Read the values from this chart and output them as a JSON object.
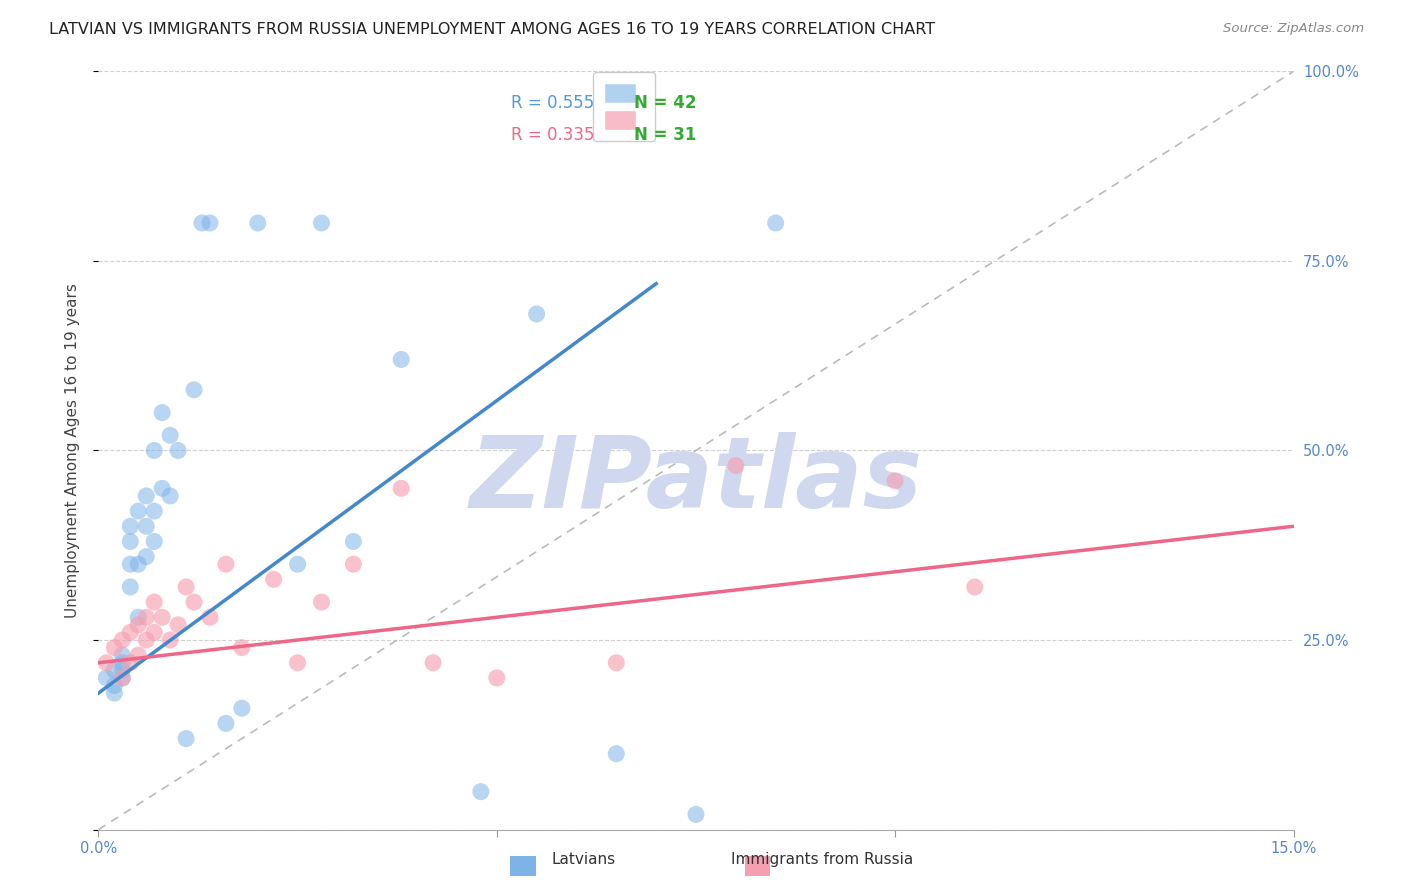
{
  "title": "LATVIAN VS IMMIGRANTS FROM RUSSIA UNEMPLOYMENT AMONG AGES 16 TO 19 YEARS CORRELATION CHART",
  "source": "Source: ZipAtlas.com",
  "ylabel": "Unemployment Among Ages 16 to 19 years",
  "x_min": 0.0,
  "x_max": 0.15,
  "y_min": 0.0,
  "y_max": 1.0,
  "latvian_color": "#7EB3E8",
  "immigrant_color": "#F5A0B0",
  "latvian_line_color": "#4488CC",
  "immigrant_line_color": "#EE6688",
  "diagonal_color": "#BBBBBB",
  "legend_R1": "R = 0.555",
  "legend_N1": "N = 42",
  "legend_R2": "R = 0.335",
  "legend_N2": "N = 31",
  "legend_color_1": "#5599DD",
  "legend_color_2": "#EE6688",
  "legend_N_color": "#33AA33",
  "latvians_label": "Latvians",
  "immigrants_label": "Immigrants from Russia",
  "latvian_x": [
    0.001,
    0.002,
    0.002,
    0.002,
    0.003,
    0.003,
    0.003,
    0.003,
    0.004,
    0.004,
    0.004,
    0.004,
    0.005,
    0.005,
    0.005,
    0.006,
    0.006,
    0.006,
    0.007,
    0.007,
    0.007,
    0.008,
    0.008,
    0.009,
    0.009,
    0.01,
    0.011,
    0.012,
    0.013,
    0.014,
    0.016,
    0.018,
    0.02,
    0.025,
    0.028,
    0.032,
    0.038,
    0.048,
    0.055,
    0.065,
    0.075,
    0.085
  ],
  "latvian_y": [
    0.2,
    0.19,
    0.21,
    0.18,
    0.2,
    0.22,
    0.23,
    0.21,
    0.32,
    0.35,
    0.38,
    0.4,
    0.28,
    0.35,
    0.42,
    0.36,
    0.4,
    0.44,
    0.38,
    0.42,
    0.5,
    0.45,
    0.55,
    0.44,
    0.52,
    0.5,
    0.12,
    0.58,
    0.8,
    0.8,
    0.14,
    0.16,
    0.8,
    0.35,
    0.8,
    0.38,
    0.62,
    0.05,
    0.68,
    0.1,
    0.02,
    0.8
  ],
  "immigrant_x": [
    0.001,
    0.002,
    0.003,
    0.003,
    0.004,
    0.004,
    0.005,
    0.005,
    0.006,
    0.006,
    0.007,
    0.007,
    0.008,
    0.009,
    0.01,
    0.011,
    0.012,
    0.014,
    0.016,
    0.018,
    0.022,
    0.025,
    0.028,
    0.032,
    0.038,
    0.042,
    0.05,
    0.065,
    0.08,
    0.1,
    0.11
  ],
  "immigrant_y": [
    0.22,
    0.24,
    0.2,
    0.25,
    0.22,
    0.26,
    0.23,
    0.27,
    0.25,
    0.28,
    0.3,
    0.26,
    0.28,
    0.25,
    0.27,
    0.32,
    0.3,
    0.28,
    0.35,
    0.24,
    0.33,
    0.22,
    0.3,
    0.35,
    0.45,
    0.22,
    0.2,
    0.22,
    0.48,
    0.46,
    0.32
  ],
  "latvian_line_x0": 0.0,
  "latvian_line_y0": 0.18,
  "latvian_line_x1": 0.07,
  "latvian_line_y1": 0.72,
  "immigrant_line_x0": 0.0,
  "immigrant_line_y0": 0.22,
  "immigrant_line_x1": 0.15,
  "immigrant_line_y1": 0.4,
  "background_color": "#FFFFFF",
  "grid_color": "#CCCCCC",
  "watermark_text": "ZIPatlas",
  "watermark_color": "#D0D8F0",
  "title_fontsize": 11.5,
  "axis_label_fontsize": 11,
  "tick_fontsize": 10.5,
  "legend_fontsize": 12
}
